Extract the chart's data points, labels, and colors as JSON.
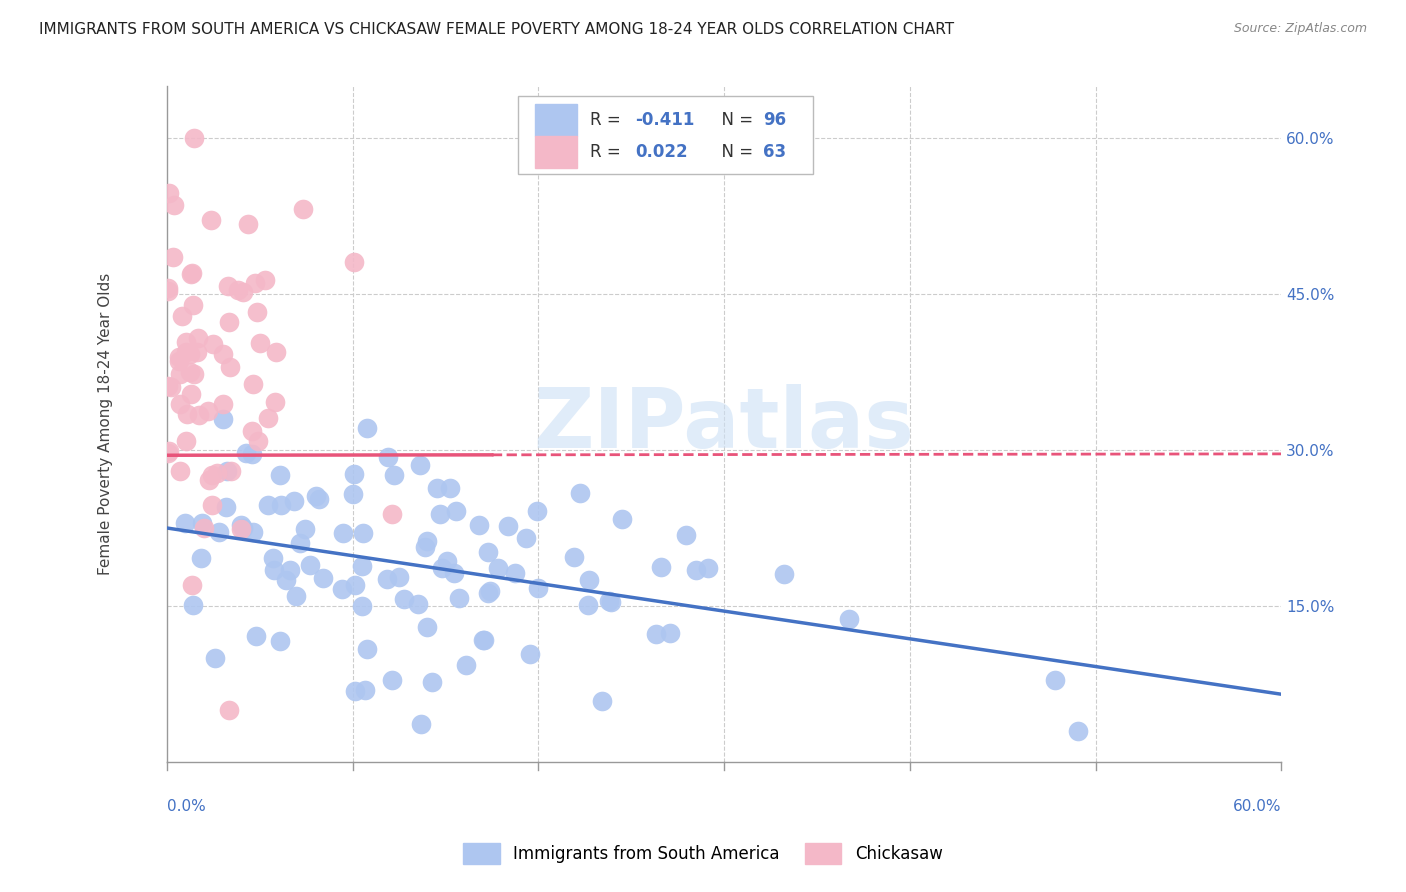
{
  "title": "IMMIGRANTS FROM SOUTH AMERICA VS CHICKASAW FEMALE POVERTY AMONG 18-24 YEAR OLDS CORRELATION CHART",
  "source": "Source: ZipAtlas.com",
  "ylabel": "Female Poverty Among 18-24 Year Olds",
  "ylabel_right_vals": [
    0.15,
    0.3,
    0.45,
    0.6
  ],
  "ylabel_right_labels": [
    "15.0%",
    "30.0%",
    "45.0%",
    "60.0%"
  ],
  "xlim": [
    0.0,
    0.6
  ],
  "ylim": [
    0.0,
    0.65
  ],
  "watermark": "ZIPatlas",
  "background_color": "#ffffff",
  "scatter_blue_color": "#aec6f0",
  "scatter_pink_color": "#f4b8c8",
  "trend_blue_color": "#4472c4",
  "trend_pink_color": "#e8547a",
  "blue_r": -0.411,
  "blue_n": 96,
  "pink_r": 0.022,
  "pink_n": 63,
  "grid_color": "#cccccc",
  "title_color": "#222222",
  "axis_label_color": "#4472c4",
  "right_axis_color": "#4472c4",
  "legend_r_color": "#4472c4"
}
